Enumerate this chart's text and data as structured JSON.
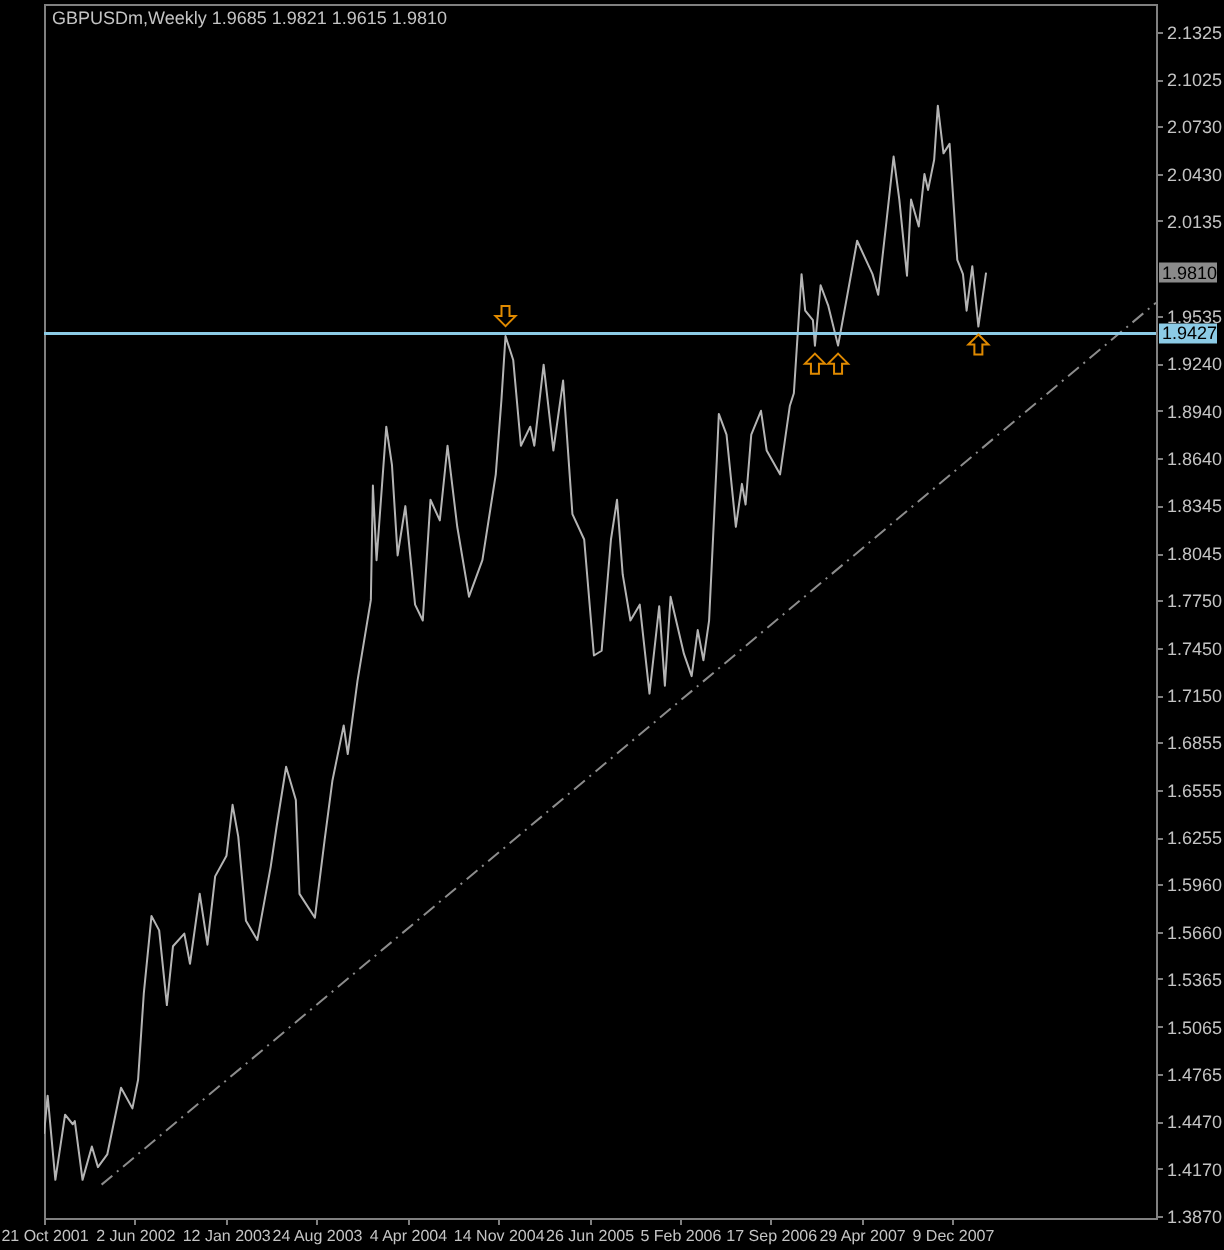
{
  "chart_data": {
    "type": "line",
    "title": "GBPUSDm,Weekly  1.9685 1.9821 1.9615 1.9810",
    "xlim": [
      "2001-10-21",
      "2009-04-24"
    ],
    "xticks": [
      {
        "value": "2001-10-21",
        "label": "21 Oct 2001"
      },
      {
        "value": "2002-06-02",
        "label": "2 Jun 2002"
      },
      {
        "value": "2003-01-12",
        "label": "12 Jan 2003"
      },
      {
        "value": "2003-08-24",
        "label": "24 Aug 2003"
      },
      {
        "value": "2004-04-04",
        "label": "4 Apr 2004"
      },
      {
        "value": "2004-11-14",
        "label": "14 Nov 2004"
      },
      {
        "value": "2005-06-26",
        "label": "26 Jun 2005"
      },
      {
        "value": "2006-02-05",
        "label": "5 Feb 2006"
      },
      {
        "value": "2006-09-17",
        "label": "17 Sep 2006"
      },
      {
        "value": "2007-04-29",
        "label": "29 Apr 2007"
      },
      {
        "value": "2007-12-09",
        "label": "9 Dec 2007"
      }
    ],
    "ylim": [
      1.386,
      2.15
    ],
    "yticks": [
      2.1325,
      2.1025,
      {
        "value": 2.073,
        "label": "2.0730"
      },
      {
        "value": 2.043,
        "label": "2.0430"
      },
      2.0135,
      1.9535,
      {
        "value": 1.924,
        "label": "1.9240"
      },
      {
        "value": 1.894,
        "label": "1.8940"
      },
      {
        "value": 1.864,
        "label": "1.8640"
      },
      1.8345,
      1.8045,
      {
        "value": 1.775,
        "label": "1.7750"
      },
      {
        "value": 1.745,
        "label": "1.7450"
      },
      {
        "value": 1.715,
        "label": "1.7150"
      },
      1.6855,
      1.6555,
      1.6255,
      {
        "value": 1.596,
        "label": "1.5960"
      },
      {
        "value": 1.566,
        "label": "1.5660"
      },
      1.5365,
      1.5065,
      1.4765,
      {
        "value": 1.447,
        "label": "1.4470"
      },
      {
        "value": 1.417,
        "label": "1.4170"
      },
      {
        "value": 1.387,
        "label": "1.3870"
      }
    ],
    "series": [
      {
        "color": "#b4b4b4",
        "x": [
          "2001-10-21",
          "2001-10-30",
          "2001-11-18",
          "2001-12-12",
          "2001-12-31",
          "2002-01-05",
          "2002-01-24",
          "2002-02-16",
          "2002-03-03",
          "2002-03-26",
          "2002-04-29",
          "2002-05-27",
          "2002-06-10",
          "2002-06-24",
          "2002-07-13",
          "2002-08-01",
          "2002-08-20",
          "2002-09-04",
          "2002-10-02",
          "2002-10-16",
          "2002-11-09",
          "2002-11-28",
          "2002-12-17",
          "2003-01-14",
          "2003-01-29",
          "2003-02-12",
          "2003-03-03",
          "2003-03-31",
          "2003-05-03",
          "2003-05-18",
          "2003-06-10",
          "2003-07-04",
          "2003-07-13",
          "2003-08-20",
          "2003-09-13",
          "2003-10-02",
          "2003-10-30",
          "2003-11-09",
          "2003-12-03",
          "2004-01-05",
          "2004-01-10",
          "2004-01-19",
          "2004-02-12",
          "2004-02-26",
          "2004-03-11",
          "2004-03-30",
          "2004-04-23",
          "2004-05-12",
          "2004-05-31",
          "2004-06-23",
          "2004-07-12",
          "2004-08-05",
          "2004-09-03",
          "2004-10-06",
          "2004-11-08",
          "2004-11-22",
          "2004-12-02",
          "2004-12-21",
          "2005-01-09",
          "2005-02-01",
          "2005-02-11",
          "2005-03-06",
          "2005-03-30",
          "2005-04-23",
          "2005-05-16",
          "2005-06-14",
          "2005-07-08",
          "2005-07-27",
          "2005-08-19",
          "2005-09-03",
          "2005-09-17",
          "2005-10-06",
          "2005-10-29",
          "2005-11-22",
          "2005-12-16",
          "2005-12-30",
          "2006-01-13",
          "2006-02-15",
          "2006-03-06",
          "2006-03-21",
          "2006-04-04",
          "2006-04-18",
          "2006-05-07",
          "2006-05-12",
          "2006-05-31",
          "2006-06-23",
          "2006-07-08",
          "2006-07-17",
          "2006-07-31",
          "2006-08-24",
          "2006-09-07",
          "2006-10-10",
          "2006-11-03",
          "2006-11-13",
          "2006-12-02",
          "2006-12-11",
          "2006-12-30",
          "2007-01-04",
          "2007-01-18",
          "2007-02-06",
          "2007-03-02",
          "2007-03-25",
          "2007-04-18",
          "2007-05-26",
          "2007-06-09",
          "2007-06-28",
          "2007-07-17",
          "2007-07-31",
          "2007-08-19",
          "2007-08-29",
          "2007-09-17",
          "2007-10-01",
          "2007-10-10",
          "2007-10-25",
          "2007-11-03",
          "2007-11-17",
          "2007-12-02",
          "2007-12-21",
          "2008-01-04",
          "2008-01-13",
          "2008-01-27",
          "2008-02-11",
          "2008-03-01"
        ],
        "values": [
          1.439,
          1.463,
          1.41,
          1.451,
          1.445,
          1.447,
          1.41,
          1.431,
          1.418,
          1.426,
          1.468,
          1.455,
          1.473,
          1.527,
          1.576,
          1.567,
          1.52,
          1.557,
          1.565,
          1.546,
          1.59,
          1.558,
          1.601,
          1.614,
          1.646,
          1.626,
          1.573,
          1.561,
          1.607,
          1.633,
          1.67,
          1.649,
          1.59,
          1.575,
          1.624,
          1.661,
          1.696,
          1.678,
          1.724,
          1.775,
          1.847,
          1.8,
          1.884,
          1.86,
          1.803,
          1.834,
          1.772,
          1.762,
          1.838,
          1.825,
          1.872,
          1.821,
          1.777,
          1.8,
          1.854,
          1.901,
          1.941,
          1.926,
          1.872,
          1.884,
          1.872,
          1.923,
          1.869,
          1.913,
          1.829,
          1.813,
          1.74,
          1.743,
          1.813,
          1.838,
          1.791,
          1.762,
          1.772,
          1.716,
          1.771,
          1.721,
          1.777,
          1.741,
          1.727,
          1.756,
          1.737,
          1.762,
          1.863,
          1.892,
          1.879,
          1.821,
          1.848,
          1.835,
          1.879,
          1.894,
          1.869,
          1.854,
          1.897,
          1.905,
          1.98,
          1.957,
          1.951,
          1.935,
          1.973,
          1.96,
          1.935,
          1.967,
          2.001,
          1.98,
          1.967,
          2.01,
          2.054,
          2.027,
          1.979,
          2.027,
          2.01,
          2.043,
          2.033,
          2.052,
          2.086,
          2.056,
          2.062,
          1.989,
          1.98,
          1.957,
          1.985,
          1.947,
          1.981
        ]
      },
      {
        "type": "line",
        "color": "#8c8c8c",
        "line_style": "dashed",
        "x": [
          "2002-03-12",
          "2009-04-24"
        ],
        "values": [
          1.407,
          1.962
        ]
      }
    ],
    "ref_lines": [
      {
        "axis": "y",
        "value": 1.9427,
        "label": "1.9427",
        "color": "#8ccbe6"
      }
    ],
    "annotations": [
      {
        "text": "1.9810",
        "y": 1.981
      }
    ]
  }
}
